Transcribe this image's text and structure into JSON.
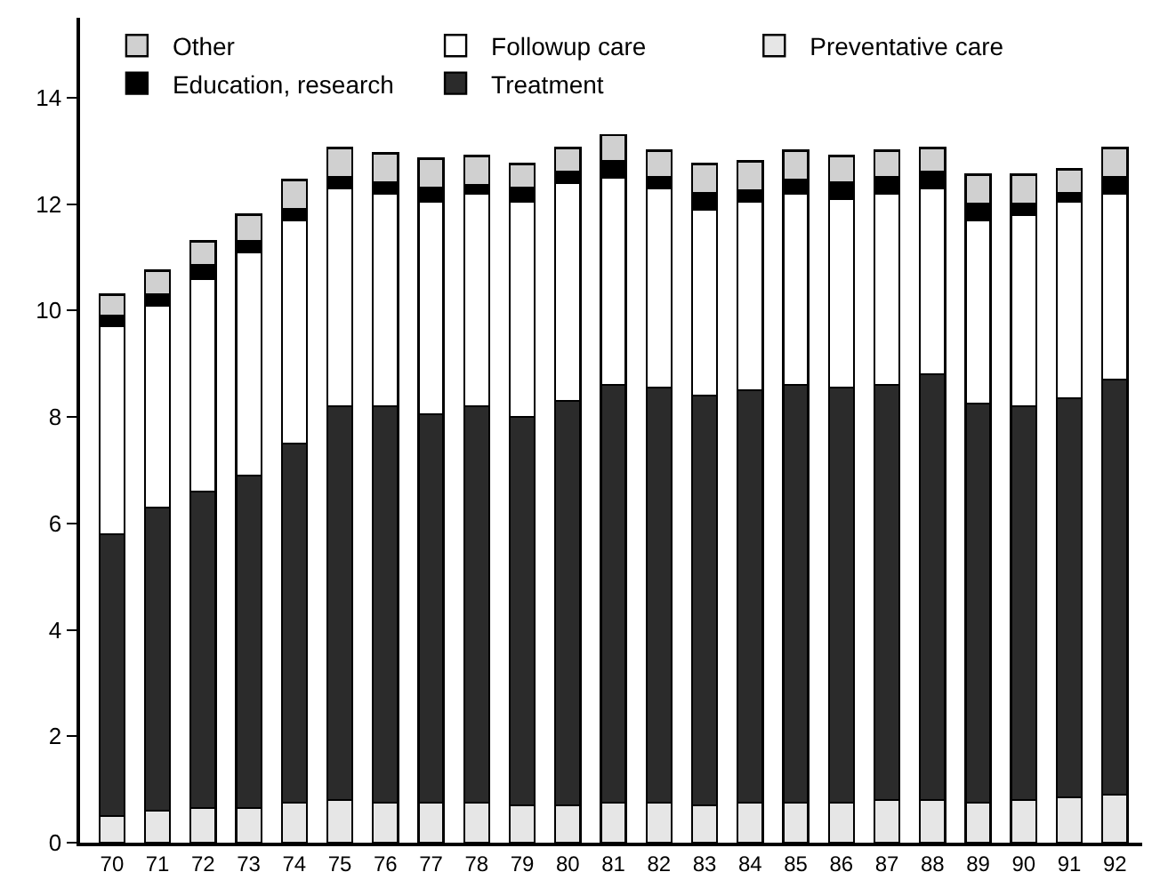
{
  "chart_data": {
    "type": "bar",
    "stacked": true,
    "categories": [
      "70",
      "71",
      "72",
      "73",
      "74",
      "75",
      "76",
      "77",
      "78",
      "79",
      "80",
      "81",
      "82",
      "83",
      "84",
      "85",
      "86",
      "87",
      "88",
      "89",
      "90",
      "91",
      "92"
    ],
    "series": [
      {
        "name": "Preventative care",
        "color": "#e6e6e6",
        "values": [
          0.5,
          0.6,
          0.65,
          0.65,
          0.75,
          0.8,
          0.75,
          0.75,
          0.75,
          0.7,
          0.7,
          0.75,
          0.75,
          0.7,
          0.75,
          0.75,
          0.75,
          0.8,
          0.8,
          0.75,
          0.8,
          0.85,
          0.9
        ]
      },
      {
        "name": "Treatment",
        "color": "#2b2b2b",
        "values": [
          5.3,
          5.7,
          5.95,
          6.25,
          6.75,
          7.4,
          7.45,
          7.3,
          7.45,
          7.3,
          7.6,
          7.85,
          7.8,
          7.7,
          7.75,
          7.85,
          7.8,
          7.8,
          8.0,
          7.5,
          7.4,
          7.5,
          7.8
        ]
      },
      {
        "name": "Followup care",
        "color": "#ffffff",
        "values": [
          3.9,
          3.8,
          4.0,
          4.2,
          4.2,
          4.1,
          4.0,
          4.0,
          4.0,
          4.05,
          4.1,
          3.9,
          3.75,
          3.5,
          3.55,
          3.6,
          3.55,
          3.6,
          3.5,
          3.45,
          3.6,
          3.7,
          3.5
        ]
      },
      {
        "name": "Education, research",
        "color": "#000000",
        "values": [
          0.2,
          0.2,
          0.25,
          0.2,
          0.2,
          0.2,
          0.2,
          0.25,
          0.15,
          0.25,
          0.2,
          0.3,
          0.2,
          0.3,
          0.2,
          0.25,
          0.3,
          0.3,
          0.3,
          0.3,
          0.2,
          0.15,
          0.3
        ]
      },
      {
        "name": "Other",
        "color": "#d0d0d0",
        "values": [
          0.4,
          0.45,
          0.45,
          0.5,
          0.55,
          0.55,
          0.55,
          0.55,
          0.55,
          0.45,
          0.45,
          0.5,
          0.5,
          0.55,
          0.55,
          0.55,
          0.5,
          0.5,
          0.45,
          0.55,
          0.55,
          0.45,
          0.55
        ]
      }
    ],
    "ylim": [
      0,
      15.5
    ],
    "yticks": [
      0,
      2,
      4,
      6,
      8,
      10,
      12,
      14
    ],
    "legend": "top"
  }
}
